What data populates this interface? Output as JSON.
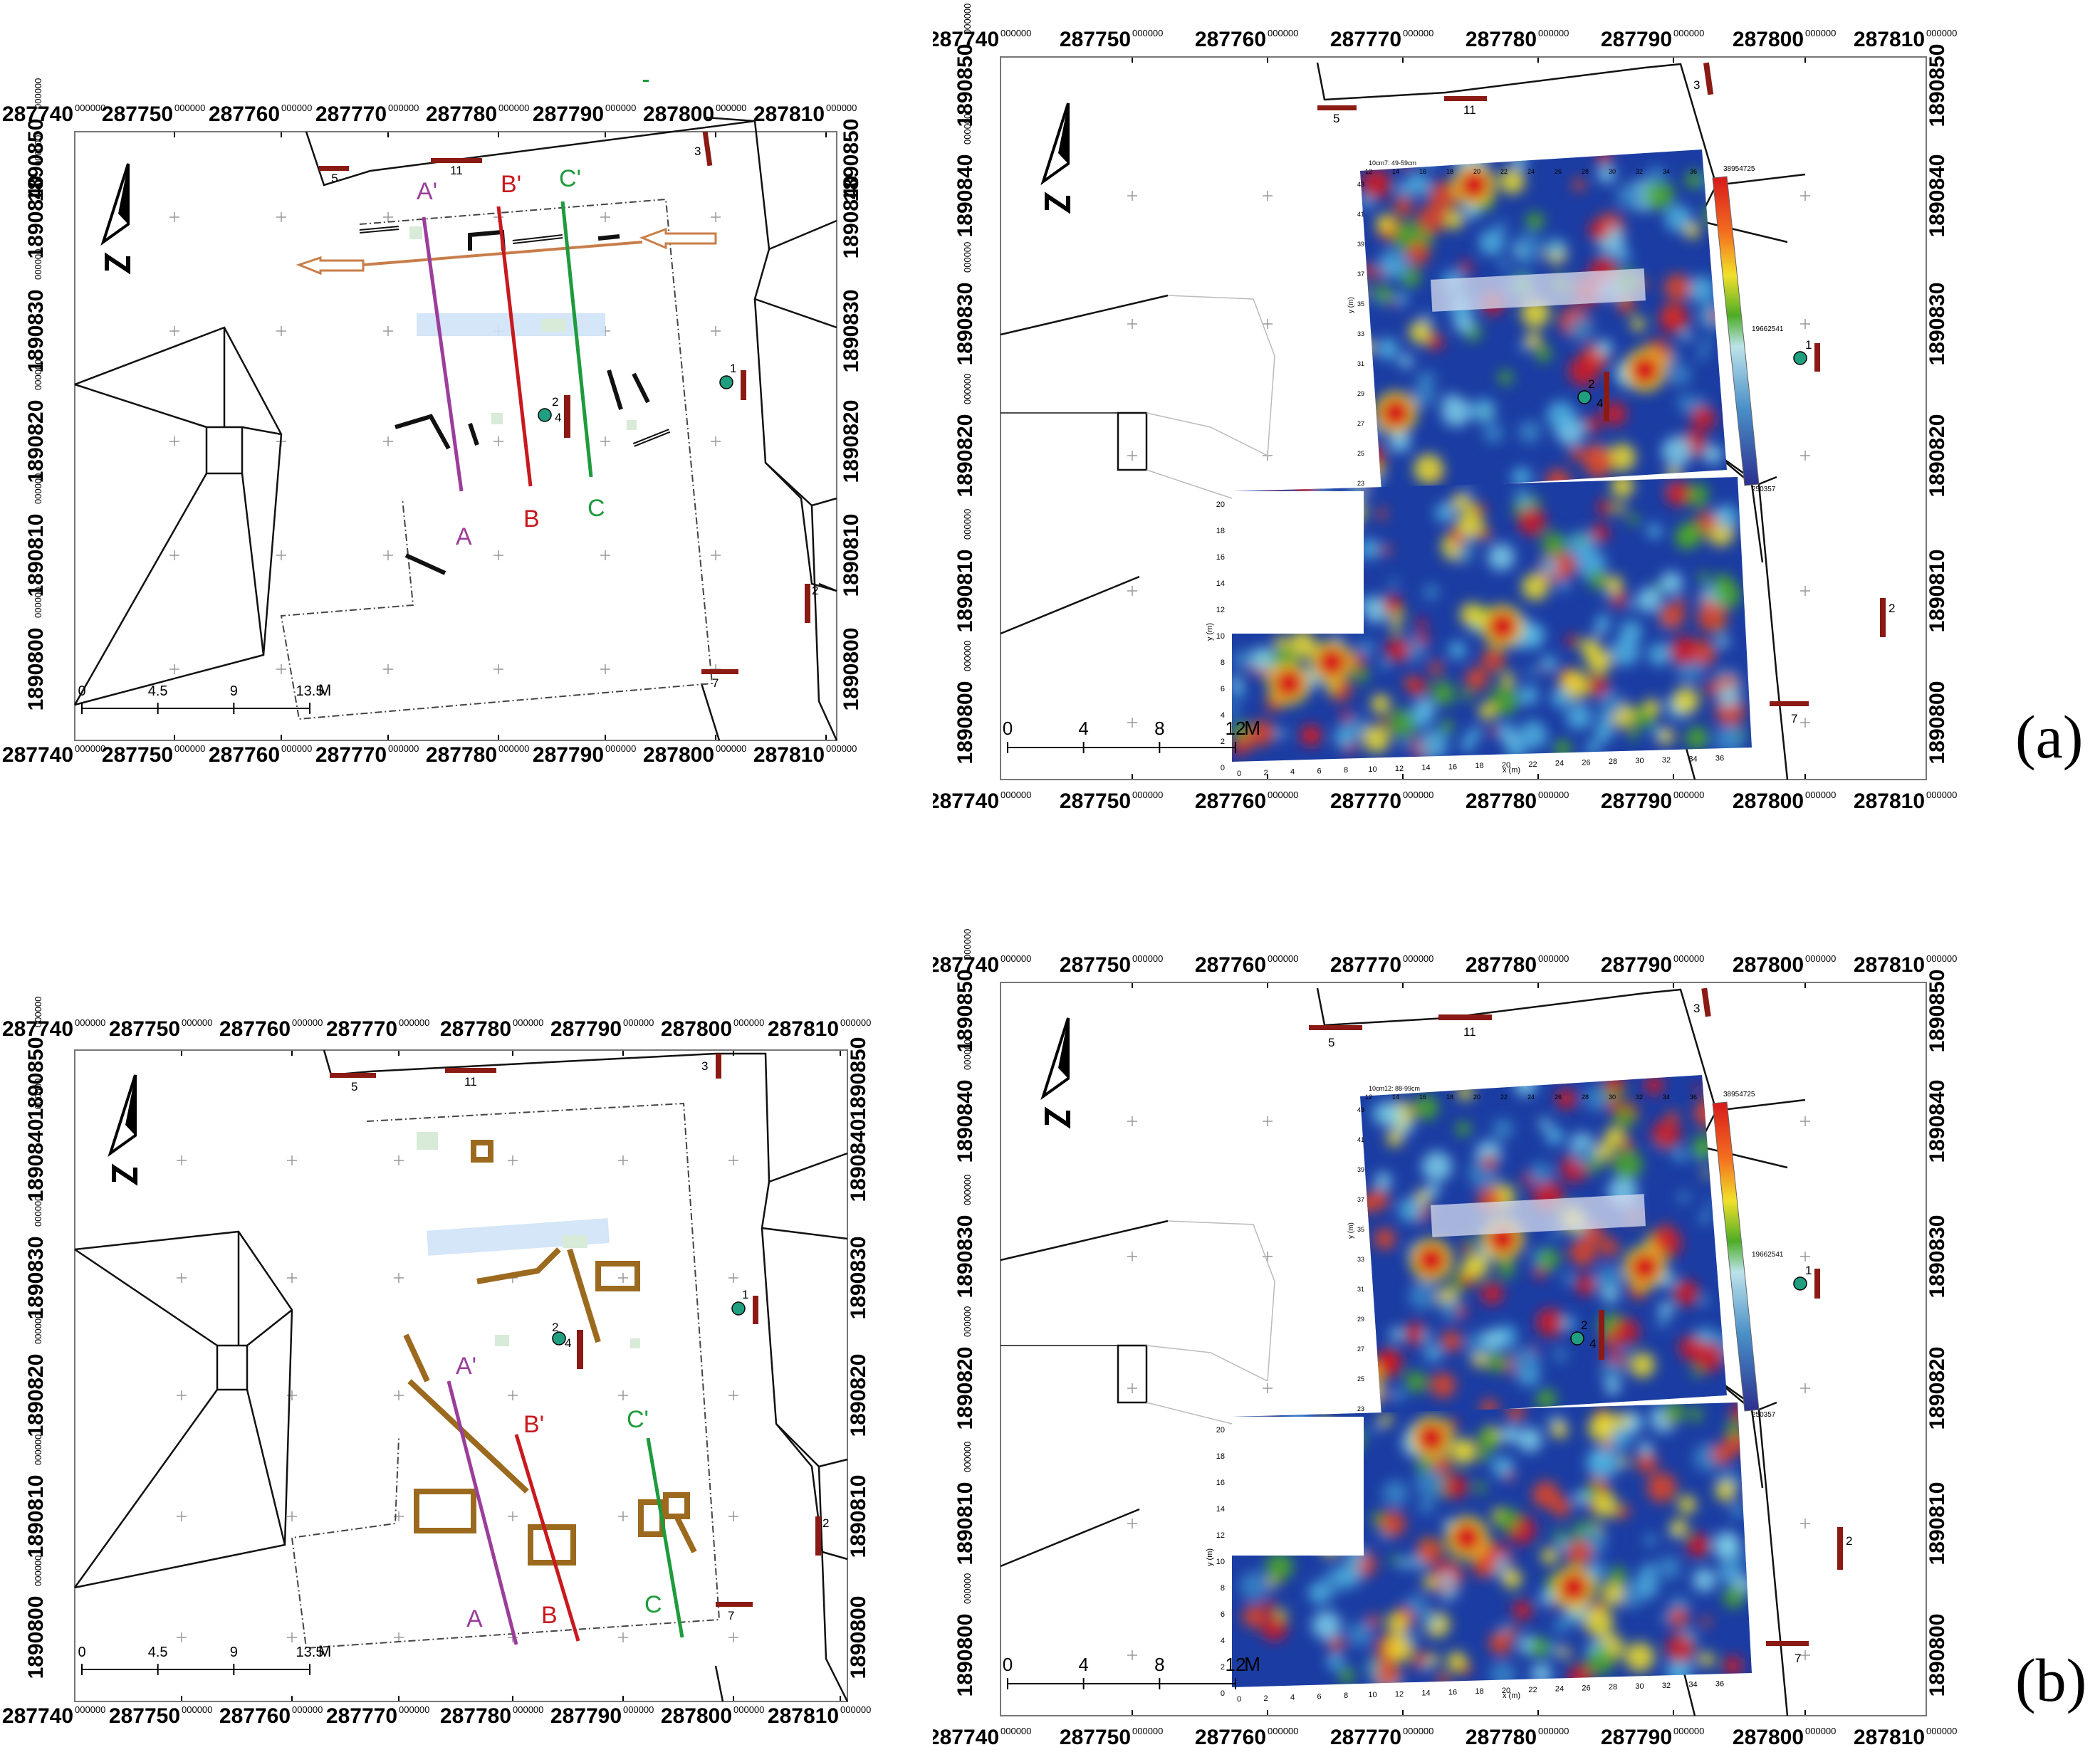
{
  "panels": [
    {
      "id": "a-left",
      "x_ticks": [
        "287740",
        "287750",
        "287760",
        "287770",
        "287780",
        "287790",
        "287800",
        "287810"
      ],
      "y_ticks": [
        "1890850",
        "1890840",
        "1890830",
        "1890820",
        "1890810",
        "1890800"
      ],
      "tick_sup": "000000",
      "scale": {
        "ticks": [
          "0",
          "4.5",
          "9",
          "13.5"
        ],
        "unit": "M"
      },
      "profiles": [
        {
          "start": "A",
          "end": "A'",
          "color": "#9b3d9b"
        },
        {
          "start": "B",
          "end": "B'",
          "color": "#c8191e"
        },
        {
          "start": "C",
          "end": "C'",
          "color": "#1e9b3c"
        }
      ],
      "features": [
        "1",
        "2",
        "3",
        "4",
        "5",
        "7",
        "11"
      ]
    },
    {
      "id": "a-right",
      "x_ticks": [
        "287740",
        "287750",
        "287760",
        "287770",
        "287780",
        "287790",
        "287800",
        "287810"
      ],
      "y_ticks": [
        "1890850",
        "1890840",
        "1890830",
        "1890820",
        "1890810",
        "1890800"
      ],
      "tick_sup": "000000",
      "scale": {
        "ticks": [
          "0",
          "4",
          "8",
          "12"
        ],
        "unit": "M"
      },
      "features": [
        "1",
        "2",
        "3",
        "4",
        "5",
        "7",
        "11"
      ],
      "gpr": {
        "upper_title": "10cm7: 49-59cm",
        "upper_x": [
          "12",
          "14",
          "16",
          "18",
          "20",
          "22",
          "24",
          "26",
          "28",
          "30",
          "32",
          "34",
          "36"
        ],
        "upper_y": [
          "43",
          "41",
          "39",
          "37",
          "35",
          "33",
          "31",
          "29",
          "27",
          "25",
          "23"
        ],
        "upper_ylabel": "y (m)",
        "colorbar": [
          "38954725",
          "19662541",
          "250357"
        ],
        "lower_x": [
          "0",
          "2",
          "4",
          "6",
          "8",
          "10",
          "12",
          "14",
          "16",
          "18",
          "20",
          "22",
          "24",
          "26",
          "28",
          "30",
          "32",
          "34",
          "36"
        ],
        "lower_y": [
          "20",
          "18",
          "16",
          "14",
          "12",
          "10",
          "8",
          "6",
          "4",
          "2",
          "0"
        ],
        "lower_xlabel": "x (m)",
        "lower_ylabel": "y (m)"
      }
    },
    {
      "id": "b-left",
      "x_ticks": [
        "287740",
        "287750",
        "287760",
        "287770",
        "287780",
        "287790",
        "287800",
        "287810"
      ],
      "y_ticks": [
        "1890850",
        "1890840",
        "1890830",
        "1890820",
        "1890810",
        "1890800"
      ],
      "tick_sup": "000000",
      "scale": {
        "ticks": [
          "0",
          "4.5",
          "9",
          "13.5"
        ],
        "unit": "M"
      },
      "profiles": [
        {
          "start": "A",
          "end": "A'",
          "color": "#9b3d9b"
        },
        {
          "start": "B",
          "end": "B'",
          "color": "#c8191e"
        },
        {
          "start": "C",
          "end": "C'",
          "color": "#1e9b3c"
        }
      ],
      "features": [
        "1",
        "2",
        "3",
        "4",
        "5",
        "7",
        "11"
      ]
    },
    {
      "id": "b-right",
      "x_ticks": [
        "287740",
        "287750",
        "287760",
        "287770",
        "287780",
        "287790",
        "287800",
        "287810"
      ],
      "y_ticks": [
        "1890850",
        "1890840",
        "1890830",
        "1890820",
        "1890810",
        "1890800"
      ],
      "tick_sup": "000000",
      "scale": {
        "ticks": [
          "0",
          "4",
          "8",
          "12"
        ],
        "unit": "M"
      },
      "features": [
        "1",
        "2",
        "3",
        "4",
        "5",
        "7",
        "11"
      ],
      "gpr": {
        "upper_title": "10cm12: 88-99cm",
        "upper_x": [
          "12",
          "14",
          "16",
          "18",
          "20",
          "22",
          "24",
          "26",
          "28",
          "30",
          "32",
          "34",
          "36"
        ],
        "upper_y": [
          "43",
          "41",
          "39",
          "37",
          "35",
          "33",
          "31",
          "29",
          "27",
          "25",
          "23"
        ],
        "upper_ylabel": "y (m)",
        "colorbar": [
          "38954725",
          "19662541",
          "250357"
        ],
        "lower_x": [
          "0",
          "2",
          "4",
          "6",
          "8",
          "10",
          "12",
          "14",
          "16",
          "18",
          "20",
          "22",
          "24",
          "26",
          "28",
          "30",
          "32",
          "34",
          "36"
        ],
        "lower_y": [
          "20",
          "18",
          "16",
          "14",
          "12",
          "10",
          "8",
          "6",
          "4",
          "2",
          "0"
        ],
        "lower_xlabel": "x (m)",
        "lower_ylabel": "y (m)"
      }
    }
  ],
  "captions": {
    "a": "(a)",
    "b": "(b)"
  }
}
